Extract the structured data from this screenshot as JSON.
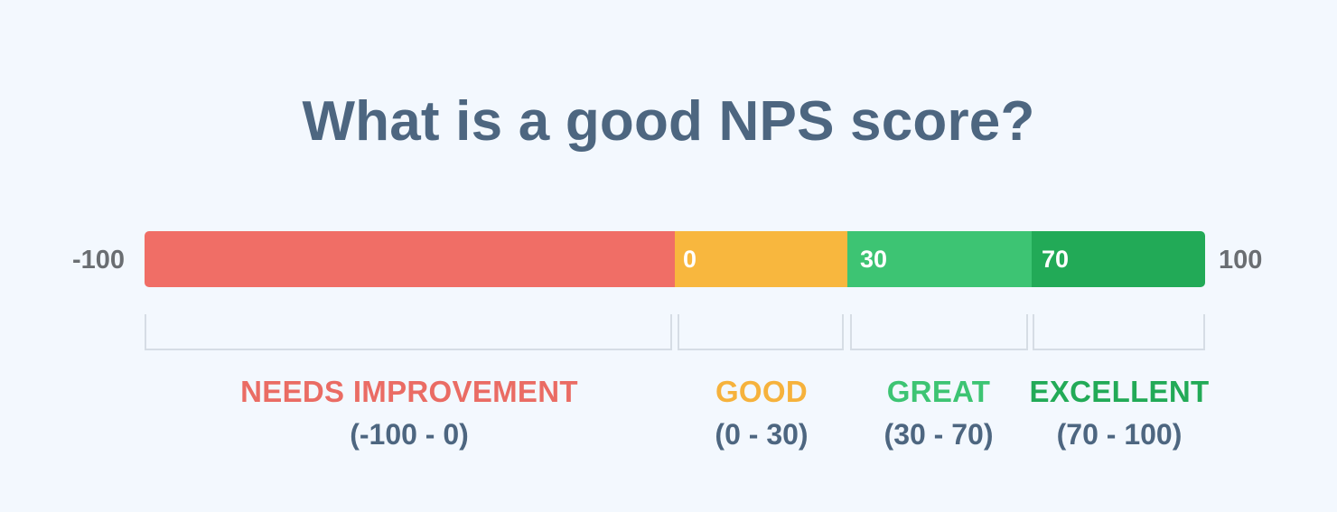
{
  "title": "What is a good NPS score?",
  "scale": {
    "min_label": "-100",
    "max_label": "100"
  },
  "colors": {
    "background": "#f3f8fe",
    "title": "#4d6680",
    "needs_improvement": "#f06e66",
    "good": "#f8b73e",
    "great": "#3dc473",
    "excellent": "#22aa57",
    "bracket": "#d6dde5"
  },
  "segments": [
    {
      "key": "needs_improvement",
      "start_label": "",
      "name": "NEEDS IMPROVEMENT",
      "range": "(-100 - 0)",
      "from": -100,
      "to": 0
    },
    {
      "key": "good",
      "start_label": "0",
      "name": "GOOD",
      "range": "(0 - 30)",
      "from": 0,
      "to": 30
    },
    {
      "key": "great",
      "start_label": "30",
      "name": "GREAT",
      "range": "(30 - 70)",
      "from": 30,
      "to": 70
    },
    {
      "key": "excellent",
      "start_label": "70",
      "name": "EXCELLENT",
      "range": "(70 - 100)",
      "from": 70,
      "to": 100
    }
  ]
}
